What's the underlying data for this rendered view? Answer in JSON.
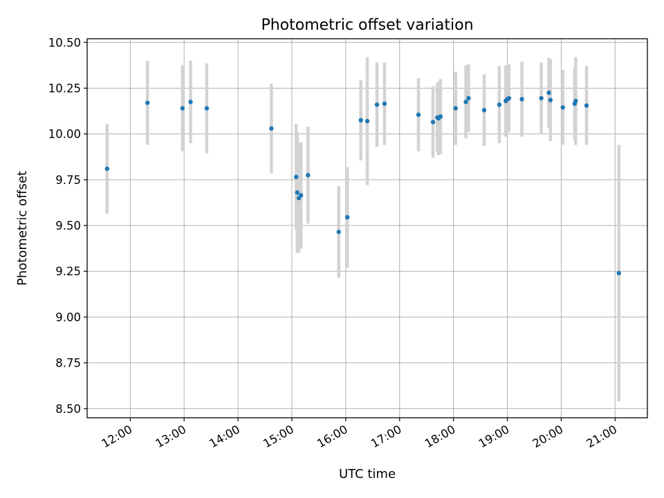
{
  "chart_data": {
    "type": "scatter",
    "title": "Photometric offset variation",
    "xlabel": "UTC time",
    "ylabel": "Photometric offset",
    "x_unit": "hours UTC",
    "xlim": [
      11.2,
      21.6
    ],
    "ylim": [
      8.45,
      10.52
    ],
    "grid": true,
    "x_ticks": [
      {
        "value": 12,
        "label": "12:00"
      },
      {
        "value": 13,
        "label": "13:00"
      },
      {
        "value": 14,
        "label": "14:00"
      },
      {
        "value": 15,
        "label": "15:00"
      },
      {
        "value": 16,
        "label": "16:00"
      },
      {
        "value": 17,
        "label": "17:00"
      },
      {
        "value": 18,
        "label": "18:00"
      },
      {
        "value": 19,
        "label": "19:00"
      },
      {
        "value": 20,
        "label": "20:00"
      },
      {
        "value": 21,
        "label": "21:00"
      }
    ],
    "y_ticks": [
      {
        "value": 8.5,
        "label": "8.50"
      },
      {
        "value": 8.75,
        "label": "8.75"
      },
      {
        "value": 9.0,
        "label": "9.00"
      },
      {
        "value": 9.25,
        "label": "9.25"
      },
      {
        "value": 9.5,
        "label": "9.50"
      },
      {
        "value": 9.75,
        "label": "9.75"
      },
      {
        "value": 10.0,
        "label": "10.00"
      },
      {
        "value": 10.25,
        "label": "10.25"
      },
      {
        "value": 10.5,
        "label": "10.50"
      }
    ],
    "colors": {
      "point": "#1f77b4",
      "errorbar": "#d3d3d3",
      "grid": "#b0b0b0"
    },
    "points": [
      {
        "x": 11.57,
        "y": 9.81,
        "err": 0.245
      },
      {
        "x": 12.32,
        "y": 10.17,
        "err": 0.23
      },
      {
        "x": 12.97,
        "y": 10.14,
        "err": 0.235
      },
      {
        "x": 13.12,
        "y": 10.175,
        "err": 0.225
      },
      {
        "x": 13.42,
        "y": 10.14,
        "err": 0.245
      },
      {
        "x": 14.62,
        "y": 10.03,
        "err": 0.245
      },
      {
        "x": 15.08,
        "y": 9.765,
        "err": 0.29
      },
      {
        "x": 15.1,
        "y": 9.68,
        "err": 0.33
      },
      {
        "x": 15.13,
        "y": 9.65,
        "err": 0.3
      },
      {
        "x": 15.17,
        "y": 9.665,
        "err": 0.29
      },
      {
        "x": 15.3,
        "y": 9.775,
        "err": 0.265
      },
      {
        "x": 15.87,
        "y": 9.465,
        "err": 0.25
      },
      {
        "x": 16.03,
        "y": 9.545,
        "err": 0.275
      },
      {
        "x": 16.28,
        "y": 10.075,
        "err": 0.22
      },
      {
        "x": 16.4,
        "y": 10.07,
        "err": 0.35
      },
      {
        "x": 16.58,
        "y": 10.16,
        "err": 0.23
      },
      {
        "x": 16.72,
        "y": 10.165,
        "err": 0.225
      },
      {
        "x": 17.35,
        "y": 10.105,
        "err": 0.2
      },
      {
        "x": 17.62,
        "y": 10.065,
        "err": 0.195
      },
      {
        "x": 17.7,
        "y": 10.09,
        "err": 0.185
      },
      {
        "x": 17.72,
        "y": 10.085,
        "err": 0.2
      },
      {
        "x": 17.76,
        "y": 10.095,
        "err": 0.205
      },
      {
        "x": 18.04,
        "y": 10.14,
        "err": 0.2
      },
      {
        "x": 18.23,
        "y": 10.175,
        "err": 0.2
      },
      {
        "x": 18.28,
        "y": 10.195,
        "err": 0.185
      },
      {
        "x": 18.57,
        "y": 10.13,
        "err": 0.195
      },
      {
        "x": 18.85,
        "y": 10.16,
        "err": 0.21
      },
      {
        "x": 18.97,
        "y": 10.18,
        "err": 0.195
      },
      {
        "x": 19.0,
        "y": 10.19,
        "err": 0.18
      },
      {
        "x": 19.03,
        "y": 10.195,
        "err": 0.185
      },
      {
        "x": 19.27,
        "y": 10.19,
        "err": 0.205
      },
      {
        "x": 19.63,
        "y": 10.195,
        "err": 0.195
      },
      {
        "x": 19.77,
        "y": 10.225,
        "err": 0.19
      },
      {
        "x": 19.8,
        "y": 10.185,
        "err": 0.225
      },
      {
        "x": 20.03,
        "y": 10.145,
        "err": 0.205
      },
      {
        "x": 20.25,
        "y": 10.165,
        "err": 0.2
      },
      {
        "x": 20.27,
        "y": 10.18,
        "err": 0.24
      },
      {
        "x": 20.47,
        "y": 10.155,
        "err": 0.215
      },
      {
        "x": 21.07,
        "y": 9.24,
        "err": 0.7
      }
    ]
  }
}
